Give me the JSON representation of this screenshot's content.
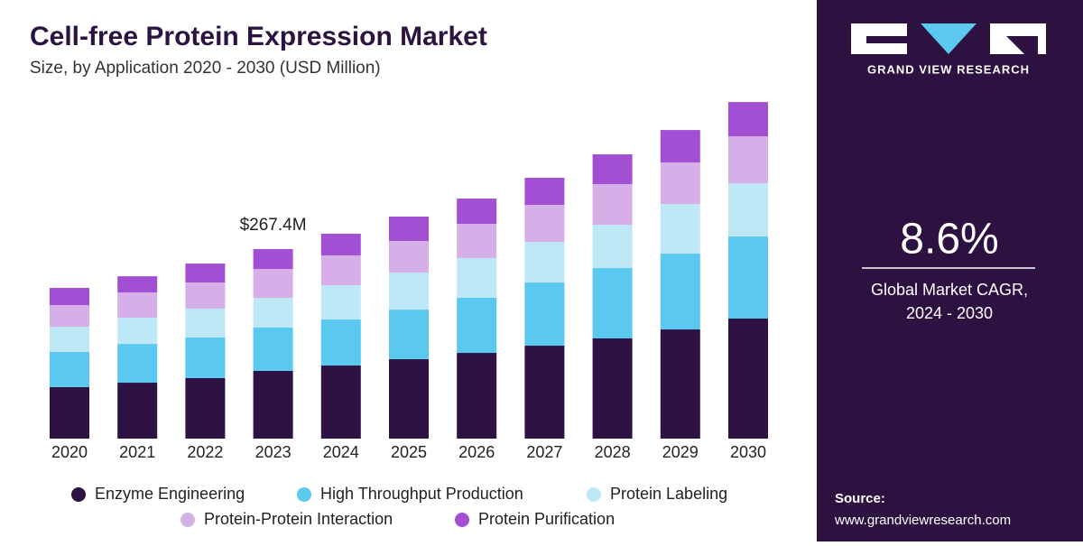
{
  "chart_data": {
    "type": "stacked_bar",
    "title": "Cell-free Protein Expression Market",
    "subtitle": "Size, by Application 2020 - 2030 (USD Million)",
    "categories": [
      "2020",
      "2021",
      "2022",
      "2023",
      "2024",
      "2025",
      "2026",
      "2027",
      "2028",
      "2029",
      "2030"
    ],
    "series": [
      {
        "name": "Enzyme Engineering",
        "color": "#2e1244",
        "values": [
          72.6,
          78.9,
          85.3,
          95.5,
          103.1,
          112.0,
          120.9,
          131.1,
          141.3,
          154.0,
          169.3
        ]
      },
      {
        "name": "High Throughput Production",
        "color": "#5bc8f0",
        "values": [
          49.6,
          54.7,
          57.3,
          61.1,
          64.9,
          70.0,
          77.7,
          89.1,
          99.3,
          106.9,
          115.8
        ]
      },
      {
        "name": "Protein Labeling",
        "color": "#bfe8f7",
        "values": [
          35.6,
          36.9,
          40.7,
          42.0,
          48.4,
          52.2,
          56.0,
          57.3,
          61.1,
          70.0,
          75.1
        ]
      },
      {
        "name": "Protein-Protein Interaction",
        "color": "#d6aee8",
        "values": [
          30.6,
          35.6,
          36.9,
          40.7,
          42.0,
          44.6,
          48.4,
          52.2,
          57.3,
          58.6,
          66.2
        ]
      },
      {
        "name": "Protein Purification",
        "color": "#a24fd4",
        "values": [
          24.2,
          22.9,
          26.7,
          28.1,
          30.6,
          34.4,
          35.6,
          38.2,
          42.0,
          45.8,
          48.4
        ]
      }
    ],
    "annotations": [
      {
        "category": "2023",
        "value": 267.4,
        "label": "$267.4M"
      }
    ]
  },
  "side_panel": {
    "brand": "GRAND VIEW RESEARCH",
    "cagr": "8.6%",
    "cagr_label": [
      "Global Market CAGR,",
      "2024 - 2030"
    ],
    "source_title": "Source:",
    "source_url": "www.grandviewresearch.com"
  }
}
